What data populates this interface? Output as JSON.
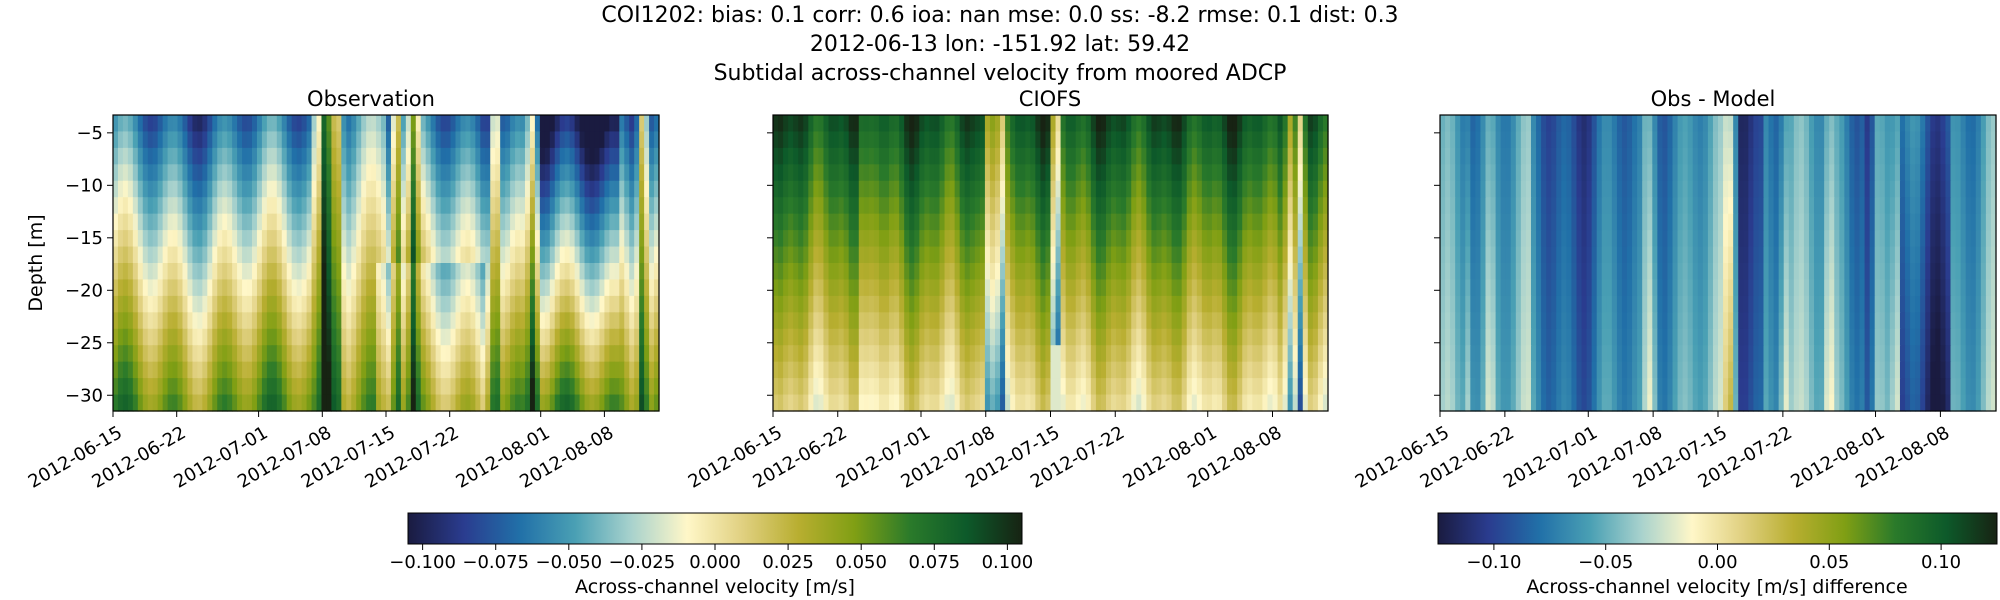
{
  "figure": {
    "title_lines": [
      "COI1202: bias: 0.1  corr: 0.6  ioa: nan  mse: 0.0  ss: -8.2  rmse: 0.1  dist: 0.3",
      "2012-06-13 lon: -151.92 lat: 59.42",
      "Subtidal across-channel velocity from moored ADCP"
    ]
  },
  "chart_data": [
    {
      "type": "heatmap",
      "title": "Observation",
      "xlabel": "",
      "ylabel": "Depth [m]",
      "x_tick_labels": [
        "2012-06-15",
        "2012-06-22",
        "2012-07-01",
        "2012-07-08",
        "2012-07-15",
        "2012-07-22",
        "2012-08-01",
        "2012-08-08"
      ],
      "x_ticks": [
        "2012-06-15",
        "2012-06-22",
        "2012-07-01",
        "2012-07-08",
        "2012-07-15",
        "2012-07-22",
        "2012-08-01",
        "2012-08-08"
      ],
      "xlim": [
        "2012-06-15",
        "2012-08-14"
      ],
      "y_ticks": [
        -5,
        -10,
        -15,
        -20,
        -25,
        -30
      ],
      "ylim": [
        -31.5,
        -3.3
      ],
      "colormap": "diverging blue-white-yellow-green",
      "clim": [
        -0.105,
        0.105
      ],
      "colorbar": "shared-left",
      "grid": false
    },
    {
      "type": "heatmap",
      "title": "CIOFS",
      "xlabel": "",
      "ylabel": "",
      "x_tick_labels": [
        "2012-06-15",
        "2012-06-22",
        "2012-07-01",
        "2012-07-08",
        "2012-07-15",
        "2012-07-22",
        "2012-08-01",
        "2012-08-08"
      ],
      "x_ticks": [
        "2012-06-15",
        "2012-06-22",
        "2012-07-01",
        "2012-07-08",
        "2012-07-15",
        "2012-07-22",
        "2012-08-01",
        "2012-08-08"
      ],
      "xlim": [
        "2012-06-15",
        "2012-08-14"
      ],
      "y_ticks": [
        -5,
        -10,
        -15,
        -20,
        -25,
        -30
      ],
      "ylim": [
        -31.5,
        -3.3
      ],
      "colormap": "diverging blue-white-yellow-green",
      "clim": [
        -0.105,
        0.105
      ],
      "colorbar": "shared-left",
      "grid": false
    },
    {
      "type": "heatmap",
      "title": "Obs - Model",
      "xlabel": "",
      "ylabel": "",
      "x_tick_labels": [
        "2012-06-15",
        "2012-06-22",
        "2012-07-01",
        "2012-07-08",
        "2012-07-15",
        "2012-07-22",
        "2012-08-01",
        "2012-08-08"
      ],
      "x_ticks": [
        "2012-06-15",
        "2012-06-22",
        "2012-07-01",
        "2012-07-08",
        "2012-07-15",
        "2012-07-22",
        "2012-08-01",
        "2012-08-08"
      ],
      "xlim": [
        "2012-06-15",
        "2012-08-14"
      ],
      "y_ticks": [
        -5,
        -10,
        -15,
        -20,
        -25,
        -30
      ],
      "ylim": [
        -31.5,
        -3.3
      ],
      "colormap": "diverging blue-white-yellow-green",
      "clim": [
        -0.125,
        0.125
      ],
      "colorbar": "right",
      "grid": false
    }
  ],
  "colorbars": [
    {
      "label": "Across-channel velocity [m/s]",
      "ticks": [
        -0.1,
        -0.075,
        -0.05,
        -0.025,
        0,
        0.025,
        0.05,
        0.075,
        0.1
      ],
      "tick_labels": [
        "−0.100",
        "−0.075",
        "−0.050",
        "−0.025",
        "0.000",
        "0.025",
        "0.050",
        "0.075",
        "0.100"
      ],
      "range": [
        -0.105,
        0.105
      ]
    },
    {
      "label": "Across-channel velocity [m/s] difference",
      "ticks": [
        -0.1,
        -0.05,
        0,
        0.05,
        0.1
      ],
      "tick_labels": [
        "−0.10",
        "−0.05",
        "0.00",
        "0.05",
        "0.10"
      ],
      "range": [
        -0.125,
        0.125
      ]
    }
  ],
  "colormap_stops": [
    "#1a1b40",
    "#2a3c8f",
    "#2170a8",
    "#4aa0b4",
    "#a8d2cd",
    "#fff7c8",
    "#e0d080",
    "#b8ae30",
    "#809f14",
    "#2a7a2a",
    "#0d5a2a",
    "#172313"
  ]
}
